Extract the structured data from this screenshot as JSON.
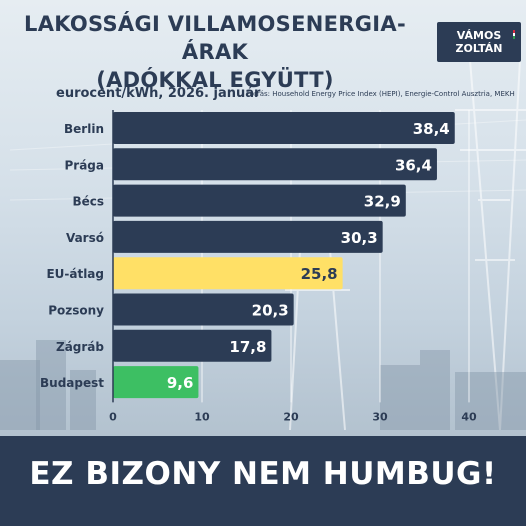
{
  "header": {
    "title_line1": "LAKOSSÁGI VILLAMOSENERGIA-ÁRAK",
    "title_line2": "(ADÓKKAL EGYÜTT)",
    "logo_line1": "VÁMOS",
    "logo_line2": "ZOLTÁN"
  },
  "subtitle": {
    "unit": "eurocent/kWh, 2026. január",
    "source": "Forrás: Household Energy Price Index (HEPI), Energie-Control Ausztria, MEKH"
  },
  "footer": {
    "slogan": "EZ BIZONY NEM HUMBUG!"
  },
  "colors": {
    "navy": "#2c3c55",
    "eu_yellow": "#ffe066",
    "budapest_green": "#3dbf63",
    "white": "#ffffff"
  },
  "chart_data": {
    "type": "bar",
    "orientation": "horizontal",
    "categories": [
      "Berlin",
      "Prága",
      "Bécs",
      "Varsó",
      "EU-átlag",
      "Pozsony",
      "Zágráb",
      "Budapest"
    ],
    "values": [
      38.4,
      36.4,
      32.9,
      30.3,
      25.8,
      20.3,
      17.8,
      9.6
    ],
    "value_labels": [
      "38,4",
      "36,4",
      "32,9",
      "30,3",
      "25,8",
      "20,3",
      "17,8",
      "9,6"
    ],
    "bar_colors": [
      "#2c3c55",
      "#2c3c55",
      "#2c3c55",
      "#2c3c55",
      "#ffe066",
      "#2c3c55",
      "#2c3c55",
      "#3dbf63"
    ],
    "label_colors": [
      "#ffffff",
      "#ffffff",
      "#ffffff",
      "#ffffff",
      "#2c3c55",
      "#ffffff",
      "#ffffff",
      "#ffffff"
    ],
    "xlim": [
      0,
      40
    ],
    "xticks": [
      0,
      10,
      20,
      30,
      40
    ],
    "xlabel": "",
    "ylabel": "",
    "grid": true
  }
}
